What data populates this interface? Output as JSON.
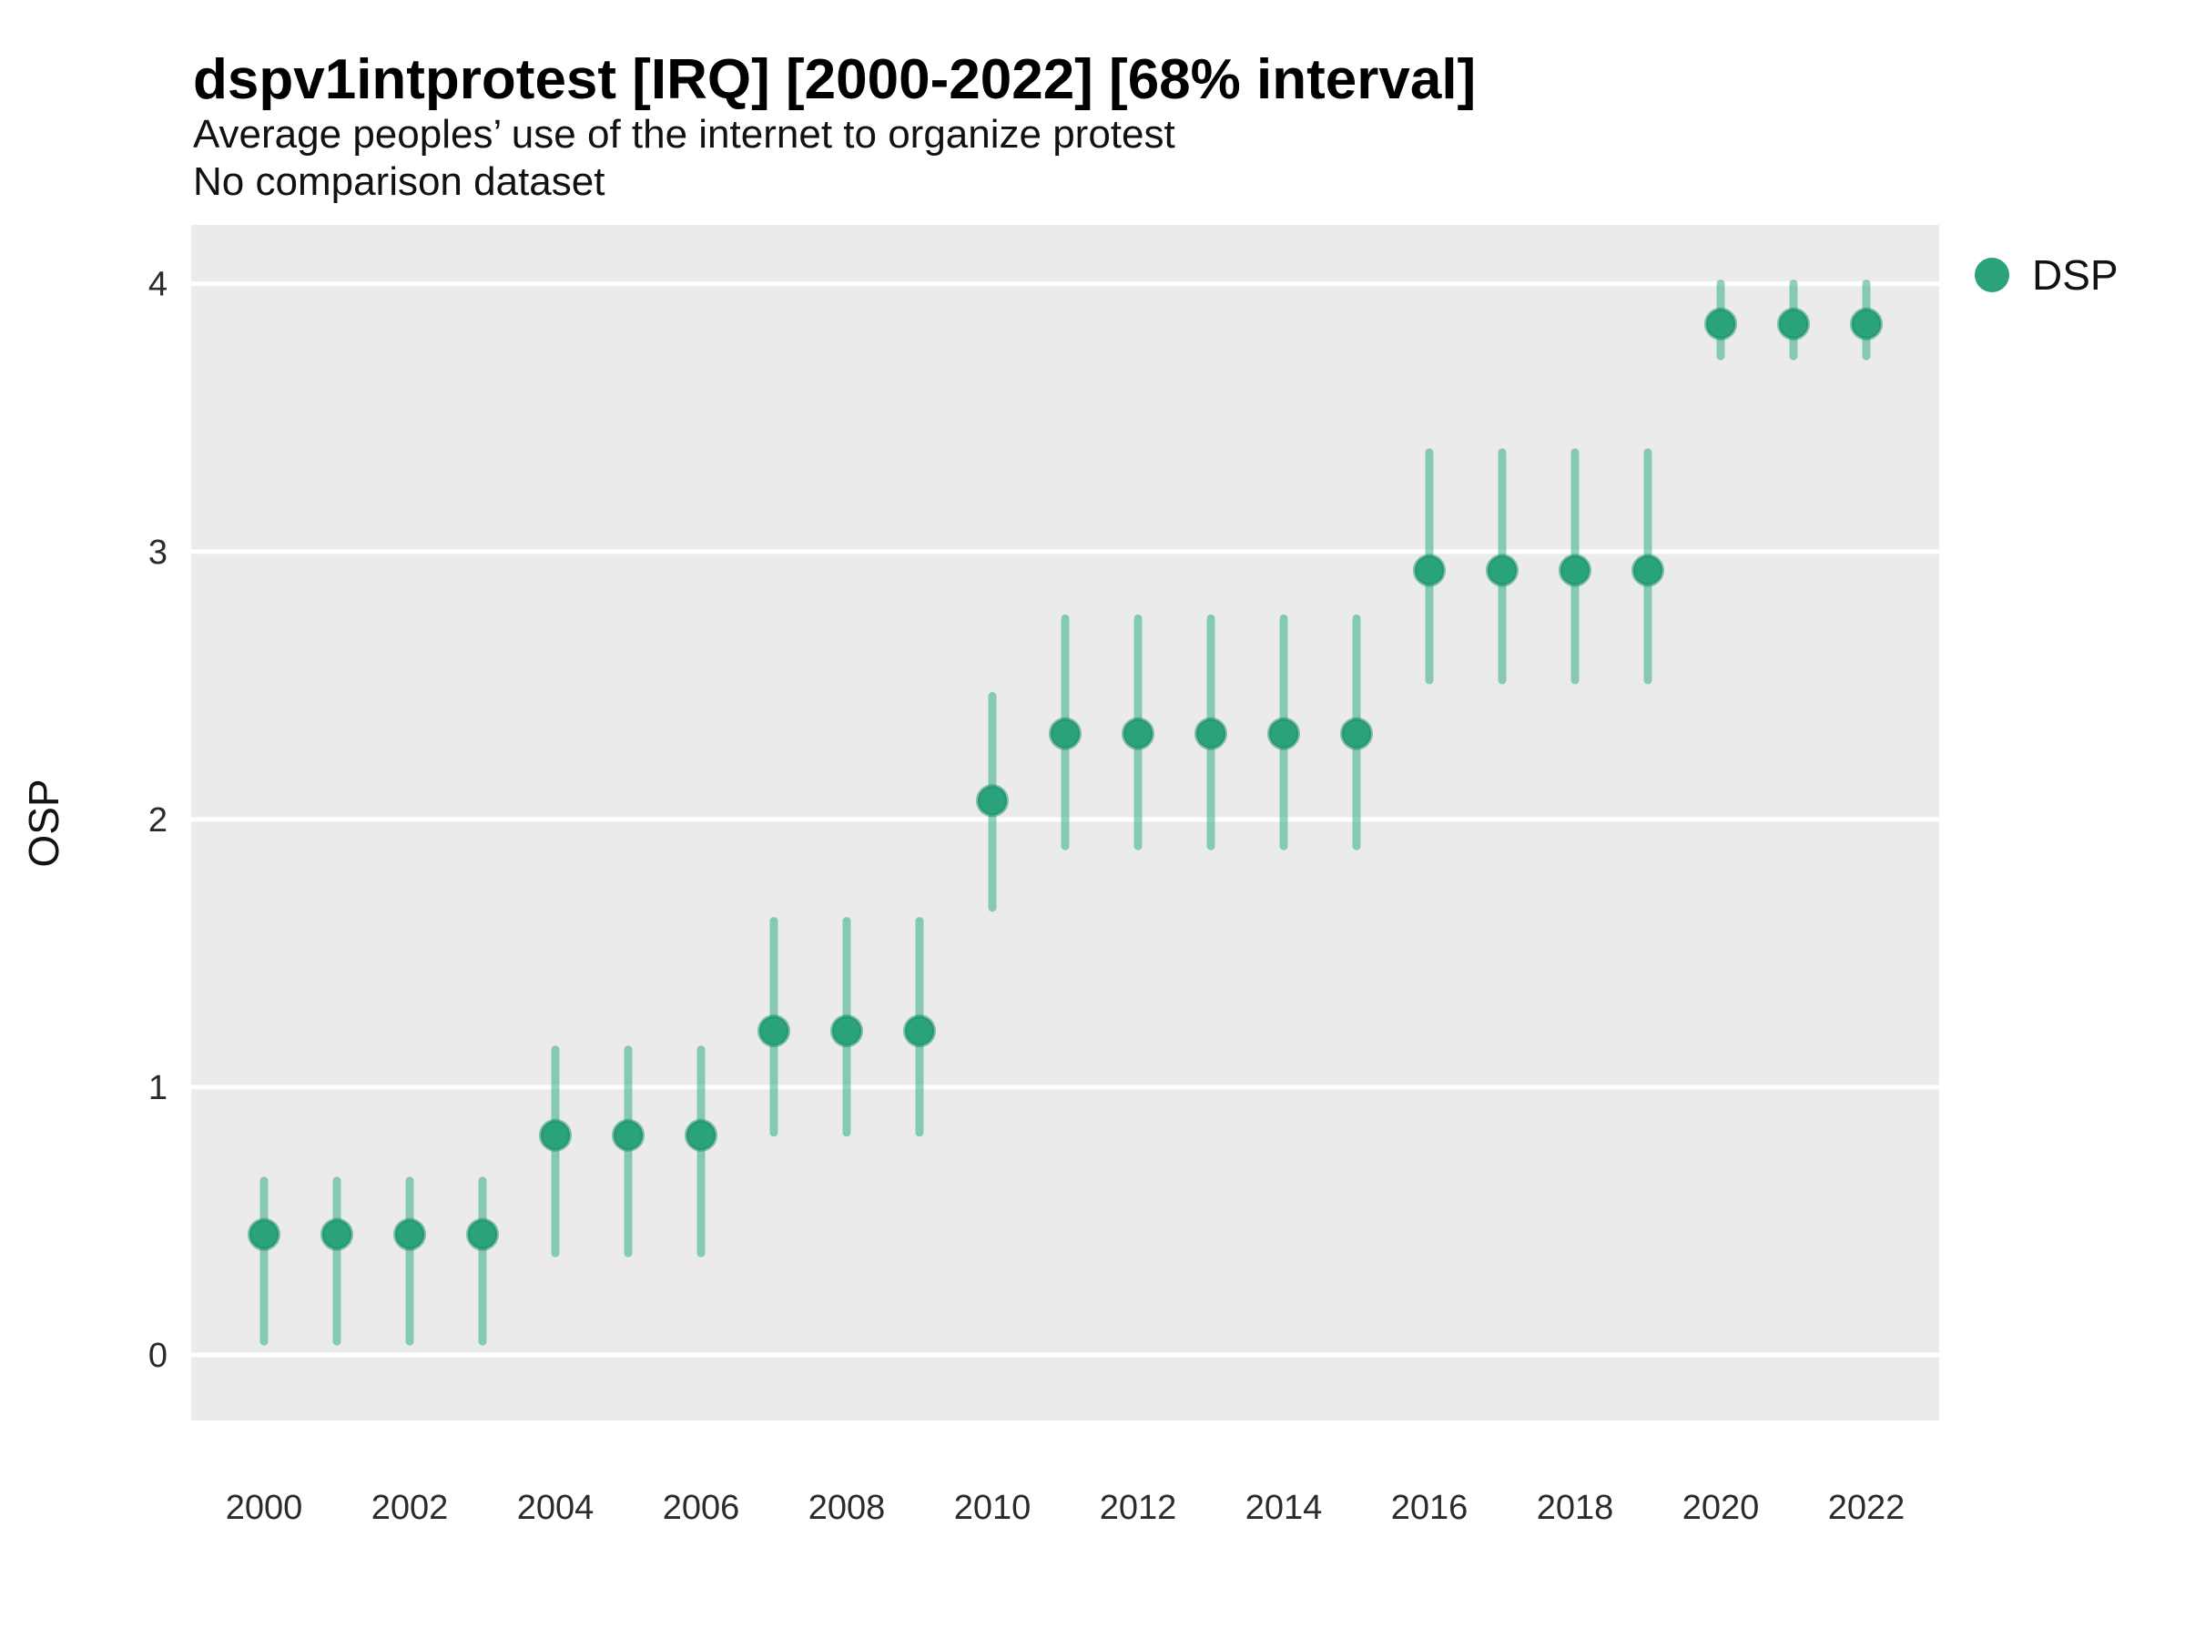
{
  "header": {
    "title": "dspv1intprotest [IRQ] [2000-2022] [68% interval]",
    "subtitle": "Average peoples’ use of the internet to organize protest",
    "note": "No comparison dataset"
  },
  "legend": {
    "position": "right",
    "items": [
      {
        "label": "DSP",
        "color": "#2AA37C"
      }
    ]
  },
  "axes": {
    "y_label": "OSP",
    "y_ticks": [
      "0",
      "1",
      "2",
      "3",
      "4"
    ],
    "x_ticks": [
      "2000",
      "2002",
      "2004",
      "2006",
      "2008",
      "2010",
      "2012",
      "2014",
      "2016",
      "2018",
      "2020",
      "2022"
    ]
  },
  "chart_data": {
    "type": "scatter",
    "subtype": "pointrange",
    "title": "dspv1intprotest [IRQ] [2000-2022] [68% interval]",
    "subtitle": "Average peoples’ use of the internet to organize protest",
    "note": "No comparison dataset",
    "xlabel": "",
    "ylabel": "OSP",
    "interval": "68%",
    "grid": "horizontal-major-only",
    "legend_position": "right-top",
    "xlim": [
      1999,
      2023
    ],
    "ylim": [
      -0.245,
      4.22
    ],
    "y_ticks": [
      0,
      1,
      2,
      3,
      4
    ],
    "x_ticks": [
      2000,
      2002,
      2004,
      2006,
      2008,
      2010,
      2012,
      2014,
      2016,
      2018,
      2020,
      2022
    ],
    "colors": {
      "panel_bg": "#EBEBEB",
      "gridline": "#FFFFFF",
      "point": "#2AA37C",
      "point_stroke": "rgba(24,140,105,0.5)",
      "interval_bar": "rgba(32,166,124,0.5)"
    },
    "series": [
      {
        "name": "DSP",
        "color": "#2AA37C",
        "points": [
          {
            "year": 2000,
            "value": 0.45,
            "lo": 0.05,
            "hi": 0.65
          },
          {
            "year": 2001,
            "value": 0.45,
            "lo": 0.05,
            "hi": 0.65
          },
          {
            "year": 2002,
            "value": 0.45,
            "lo": 0.05,
            "hi": 0.65
          },
          {
            "year": 2003,
            "value": 0.45,
            "lo": 0.05,
            "hi": 0.65
          },
          {
            "year": 2004,
            "value": 0.82,
            "lo": 0.38,
            "hi": 1.14
          },
          {
            "year": 2005,
            "value": 0.82,
            "lo": 0.38,
            "hi": 1.14
          },
          {
            "year": 2006,
            "value": 0.82,
            "lo": 0.38,
            "hi": 1.14
          },
          {
            "year": 2007,
            "value": 1.21,
            "lo": 0.83,
            "hi": 1.62
          },
          {
            "year": 2008,
            "value": 1.21,
            "lo": 0.83,
            "hi": 1.62
          },
          {
            "year": 2009,
            "value": 1.21,
            "lo": 0.83,
            "hi": 1.62
          },
          {
            "year": 2010,
            "value": 2.07,
            "lo": 1.67,
            "hi": 2.46
          },
          {
            "year": 2011,
            "value": 2.32,
            "lo": 1.9,
            "hi": 2.75
          },
          {
            "year": 2012,
            "value": 2.32,
            "lo": 1.9,
            "hi": 2.75
          },
          {
            "year": 2013,
            "value": 2.32,
            "lo": 1.9,
            "hi": 2.75
          },
          {
            "year": 2014,
            "value": 2.32,
            "lo": 1.9,
            "hi": 2.75
          },
          {
            "year": 2015,
            "value": 2.32,
            "lo": 1.9,
            "hi": 2.75
          },
          {
            "year": 2016,
            "value": 2.93,
            "lo": 2.52,
            "hi": 3.37
          },
          {
            "year": 2017,
            "value": 2.93,
            "lo": 2.52,
            "hi": 3.37
          },
          {
            "year": 2018,
            "value": 2.93,
            "lo": 2.52,
            "hi": 3.37
          },
          {
            "year": 2019,
            "value": 2.93,
            "lo": 2.52,
            "hi": 3.37
          },
          {
            "year": 2020,
            "value": 3.85,
            "lo": 3.73,
            "hi": 4.0
          },
          {
            "year": 2021,
            "value": 3.85,
            "lo": 3.73,
            "hi": 4.0
          },
          {
            "year": 2022,
            "value": 3.85,
            "lo": 3.73,
            "hi": 4.0
          }
        ]
      }
    ]
  }
}
